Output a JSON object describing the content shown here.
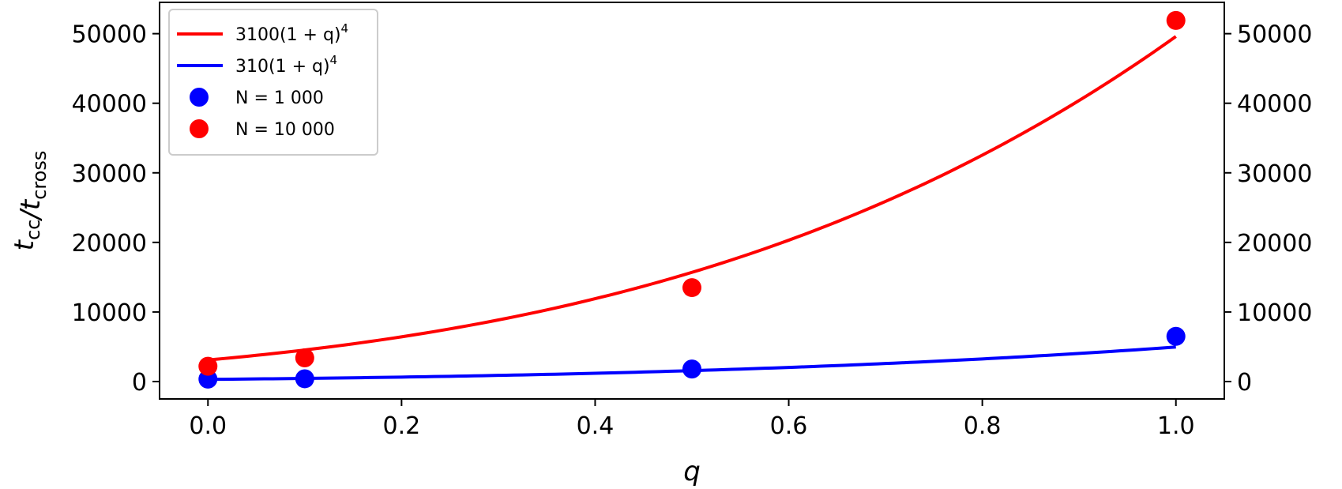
{
  "chart_data": {
    "type": "line",
    "xlabel": "q",
    "ylabel": "t_cc/t_cross",
    "xlim": [
      -0.05,
      1.05
    ],
    "ylim": [
      -2500,
      54500
    ],
    "xticks": [
      0.0,
      0.2,
      0.4,
      0.6,
      0.8,
      1.0
    ],
    "xtick_labels": [
      "0.0",
      "0.2",
      "0.4",
      "0.6",
      "0.8",
      "1.0"
    ],
    "yticks": [
      0,
      10000,
      20000,
      30000,
      40000,
      50000
    ],
    "ytick_labels": [
      "0",
      "10000",
      "20000",
      "30000",
      "40000",
      "50000"
    ],
    "right_axis_mirrors_left": true,
    "grid": false,
    "legend_position": "top-left",
    "series": [
      {
        "name": "3100(1 + q)^4",
        "kind": "line",
        "color": "#ff0000",
        "coefficient": 3100,
        "exponent": 4,
        "x_range": [
          0,
          1
        ]
      },
      {
        "name": "310(1 + q)^4",
        "kind": "line",
        "color": "#0000ff",
        "coefficient": 310,
        "exponent": 4,
        "x_range": [
          0,
          1
        ]
      },
      {
        "name": "N = 1 000",
        "kind": "scatter",
        "color": "#0000ff",
        "x": [
          0.0,
          0.1,
          0.5,
          1.0
        ],
        "y": [
          350,
          400,
          1800,
          6500
        ]
      },
      {
        "name": "N = 10 000",
        "kind": "scatter",
        "color": "#ff0000",
        "x": [
          0.0,
          0.1,
          0.5,
          1.0
        ],
        "y": [
          2200,
          3400,
          13500,
          51900
        ]
      }
    ]
  }
}
